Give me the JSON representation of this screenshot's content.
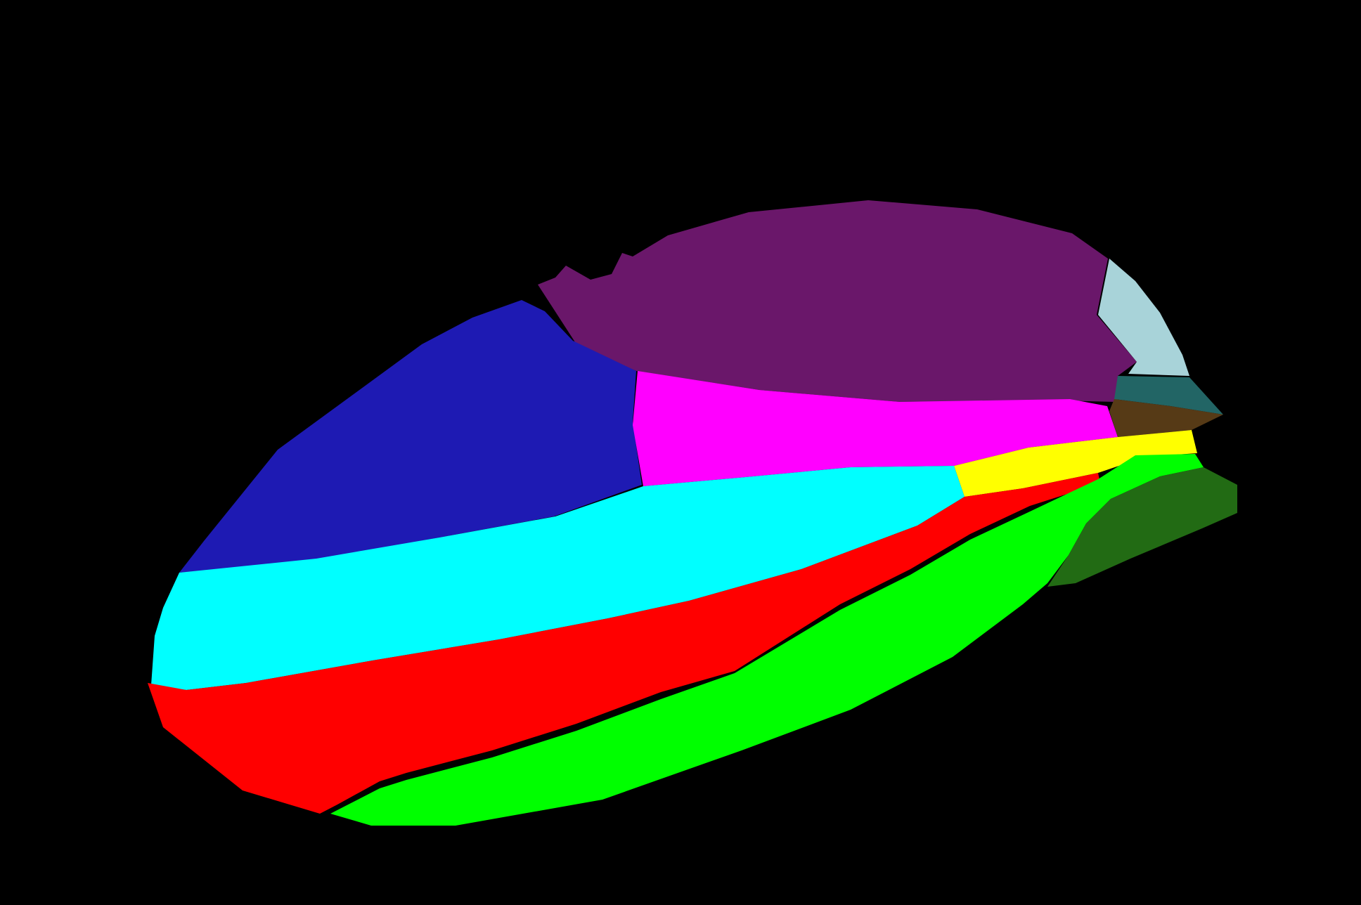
{
  "image": {
    "background_color": "#000000",
    "kind": "segmentation-mask"
  },
  "regions": [
    {
      "id": "purple-region",
      "color": "#6a176a"
    },
    {
      "id": "light-blue-region",
      "color": "#a8d3d9"
    },
    {
      "id": "blue-region",
      "color": "#1e1ab3"
    },
    {
      "id": "magenta-region",
      "color": "#ff00ff"
    },
    {
      "id": "teal-region",
      "color": "#226565"
    },
    {
      "id": "brown-region",
      "color": "#563a16"
    },
    {
      "id": "yellow-region",
      "color": "#ffff00"
    },
    {
      "id": "cyan-region",
      "color": "#00ffff"
    },
    {
      "id": "red-region",
      "color": "#ff0000"
    },
    {
      "id": "green-region",
      "color": "#00ff00"
    },
    {
      "id": "dark-green-region",
      "color": "#226b14"
    }
  ]
}
